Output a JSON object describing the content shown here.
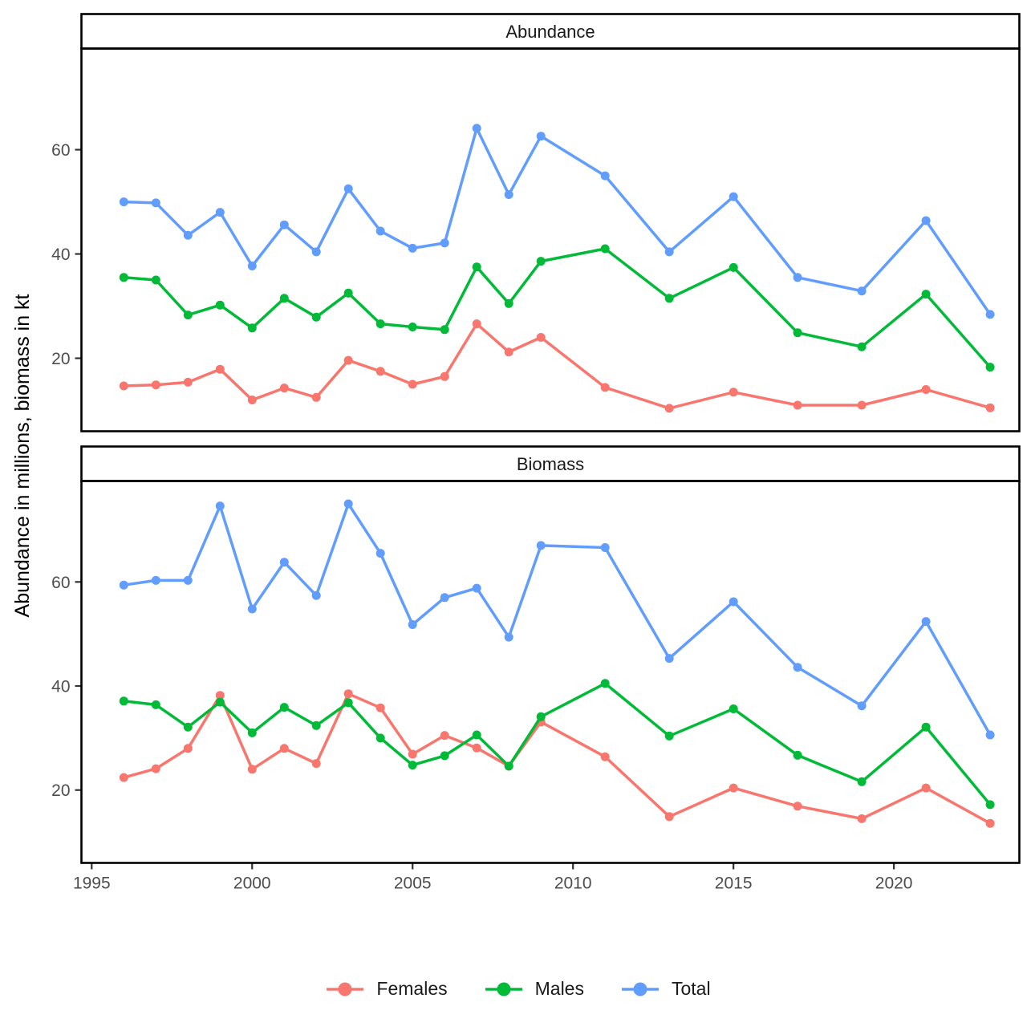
{
  "figure": {
    "y_axis_title": "Abundance in millions, biomass in kt"
  },
  "x_axis": {
    "tick_years": [
      1995,
      2000,
      2005,
      2010,
      2015,
      2020
    ],
    "tick_labels": [
      "1995",
      "2000",
      "2005",
      "2010",
      "2015",
      "2020"
    ]
  },
  "y_axis": {
    "tick_values": [
      20,
      40,
      60
    ],
    "tick_labels": [
      "20",
      "40",
      "60"
    ]
  },
  "legend": {
    "items": [
      {
        "label": "Females",
        "color": "#F8766D"
      },
      {
        "label": "Males",
        "color": "#00BA38"
      },
      {
        "label": "Total",
        "color": "#619CFF"
      }
    ]
  },
  "chart_data": {
    "type": "line",
    "x": [
      1996,
      1997,
      1998,
      1999,
      2000,
      2001,
      2002,
      2003,
      2004,
      2005,
      2006,
      2007,
      2008,
      2009,
      2011,
      2013,
      2015,
      2017,
      2019,
      2021,
      2023
    ],
    "facets": [
      {
        "label": "Abundance",
        "series": [
          {
            "name": "Females",
            "color": "#F8766D",
            "values": [
              14.7,
              14.9,
              15.4,
              17.9,
              12.0,
              14.3,
              12.5,
              19.6,
              17.5,
              15.0,
              16.5,
              26.6,
              21.2,
              24.0,
              14.4,
              10.4,
              13.5,
              11.0,
              11.0,
              14.0,
              10.5
            ]
          },
          {
            "name": "Males",
            "color": "#00BA38",
            "values": [
              35.5,
              35.0,
              28.3,
              30.2,
              25.8,
              31.5,
              27.9,
              32.5,
              26.6,
              26.0,
              25.5,
              37.5,
              30.5,
              38.6,
              41.0,
              31.5,
              37.4,
              24.9,
              22.2,
              32.3,
              18.3
            ]
          },
          {
            "name": "Total",
            "color": "#619CFF",
            "values": [
              50.0,
              49.8,
              43.6,
              48.0,
              37.7,
              45.6,
              40.4,
              52.5,
              44.4,
              41.1,
              42.1,
              64.1,
              51.4,
              62.6,
              55.0,
              40.4,
              51.0,
              35.5,
              32.9,
              46.4,
              28.4
            ]
          }
        ]
      },
      {
        "label": "Biomass",
        "series": [
          {
            "name": "Females",
            "color": "#F8766D",
            "values": [
              22.4,
              24.1,
              28.0,
              38.2,
              24.0,
              28.0,
              25.1,
              38.5,
              35.8,
              26.9,
              30.5,
              28.1,
              24.6,
              33.1,
              26.4,
              14.9,
              20.4,
              16.9,
              14.5,
              20.4,
              13.6
            ]
          },
          {
            "name": "Males",
            "color": "#00BA38",
            "values": [
              37.1,
              36.4,
              32.1,
              36.9,
              31.0,
              35.9,
              32.4,
              36.8,
              30.0,
              24.8,
              26.6,
              30.6,
              24.6,
              34.1,
              40.5,
              30.4,
              35.6,
              26.7,
              21.6,
              32.1,
              17.2
            ]
          },
          {
            "name": "Total",
            "color": "#619CFF",
            "values": [
              59.4,
              60.3,
              60.3,
              74.6,
              54.8,
              63.8,
              57.4,
              75.0,
              65.5,
              51.8,
              57.0,
              58.8,
              49.4,
              67.0,
              66.6,
              45.3,
              56.2,
              43.6,
              36.2,
              52.4,
              30.6
            ]
          }
        ]
      }
    ],
    "xlabel": "",
    "ylabel": "Abundance in millions, biomass in kt",
    "xlim": [
      1994.68,
      2023.91
    ],
    "ylim": [
      6,
      79.4
    ],
    "grid": false,
    "legend_position": "bottom"
  }
}
